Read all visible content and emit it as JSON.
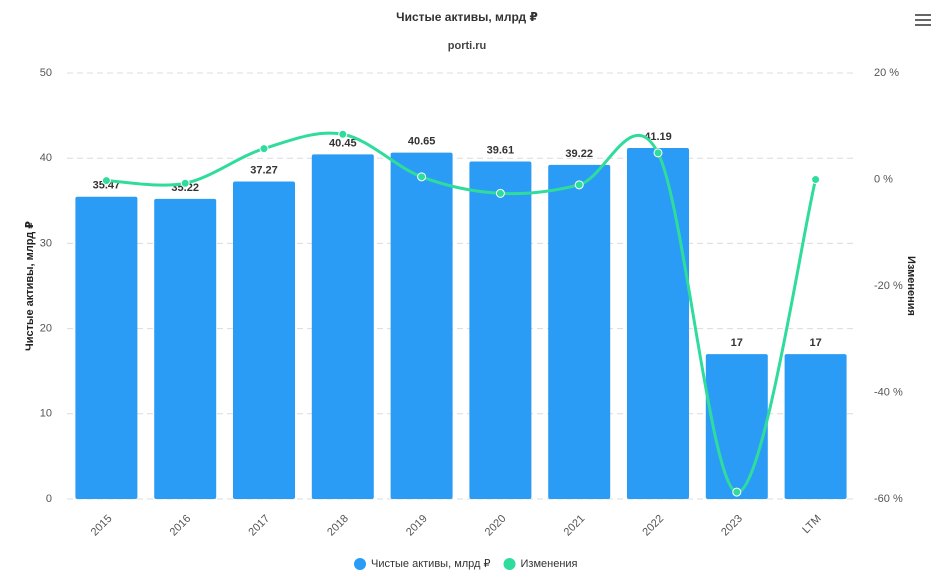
{
  "chart_data": {
    "type": "bar_line",
    "title": "Чистые активы, млрд ₽",
    "subtitle": "porti.ru",
    "y_label": "Чистые активы, млрд ₽",
    "y2_label": "Изменения",
    "categories": [
      "2015",
      "2016",
      "2017",
      "2018",
      "2019",
      "2020",
      "2021",
      "2022",
      "2023",
      "LTM"
    ],
    "series": [
      {
        "name": "Чистые активы, млрд ₽",
        "type": "bar",
        "color": "#2b9cf5",
        "values": [
          35.47,
          35.22,
          37.27,
          40.45,
          40.65,
          39.61,
          39.22,
          41.19,
          17,
          17
        ]
      },
      {
        "name": "Изменения",
        "type": "line",
        "axis": "y2",
        "color": "#2fdc9c",
        "values": [
          -0.2,
          -0.7,
          5.8,
          8.5,
          0.5,
          -2.6,
          -1.0,
          5.0,
          -58.7,
          0
        ]
      }
    ],
    "ylim": [
      0,
      50
    ],
    "yticks": [
      0,
      10,
      20,
      30,
      40,
      50
    ],
    "y2lim": [
      -60,
      20
    ],
    "y2ticks": [
      {
        "value": -60,
        "label": "-60 %"
      },
      {
        "value": -40,
        "label": "-40 %"
      },
      {
        "value": -20,
        "label": "-20 %"
      },
      {
        "value": 0,
        "label": "0 %"
      },
      {
        "value": 20,
        "label": "20 %"
      }
    ],
    "grid": true,
    "legend": "bottom"
  }
}
